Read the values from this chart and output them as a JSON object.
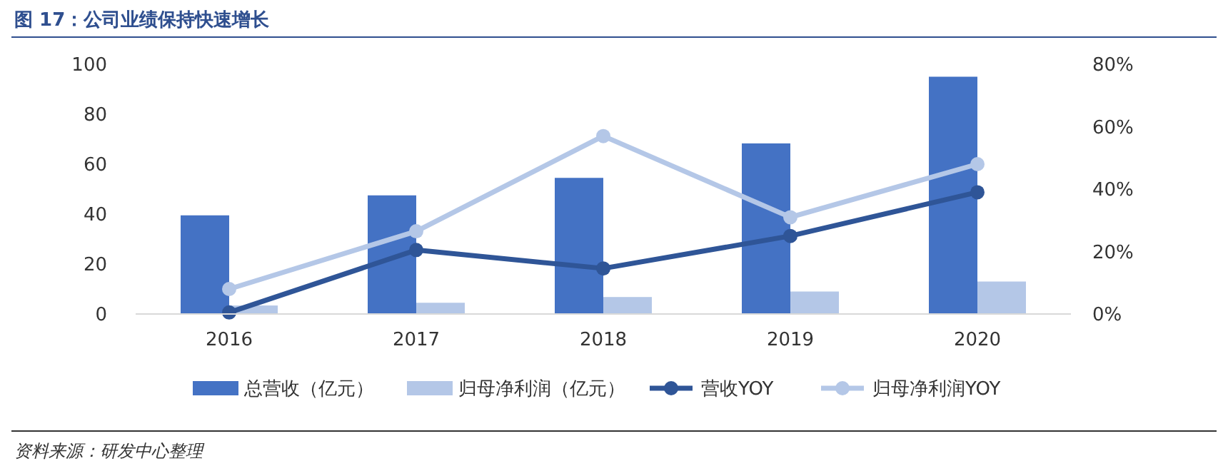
{
  "chart_data": {
    "type": "bar",
    "title": "图 17：公司业绩保持快速增长",
    "categories": [
      "2016",
      "2017",
      "2018",
      "2019",
      "2020"
    ],
    "series": [
      {
        "name": "总营收（亿元）",
        "color": "#4472c4",
        "values": [
          39.5,
          47.5,
          54.5,
          68.3,
          95
        ]
      },
      {
        "name": "归母净利润（亿元）",
        "color": "#b4c7e7",
        "values": [
          3.4,
          4.5,
          6.8,
          9,
          13
        ]
      },
      {
        "name": "营收YOY",
        "type": "line",
        "axis": "y2",
        "color": "#2f5597",
        "marker": "circle",
        "values": [
          0.5,
          20.5,
          14.6,
          25,
          39
        ]
      },
      {
        "name": "归母净利润YOY",
        "type": "line",
        "axis": "y2",
        "color": "#b4c7e7",
        "marker": "circle",
        "values": [
          8,
          26.5,
          57,
          31,
          48
        ]
      }
    ],
    "ylim": [
      0,
      100
    ],
    "yticks": [
      0,
      20,
      40,
      60,
      80,
      100
    ],
    "y2lim": [
      0,
      80
    ],
    "y2ticks": [
      {
        "value": 0,
        "label": "0%"
      },
      {
        "value": 20,
        "label": "20%"
      },
      {
        "value": 40,
        "label": "40%"
      },
      {
        "value": 60,
        "label": "60%"
      },
      {
        "value": 80,
        "label": "80%"
      }
    ],
    "legend": "bottom",
    "grid": false,
    "annotations": [
      "资料来源：研发中心整理"
    ]
  }
}
